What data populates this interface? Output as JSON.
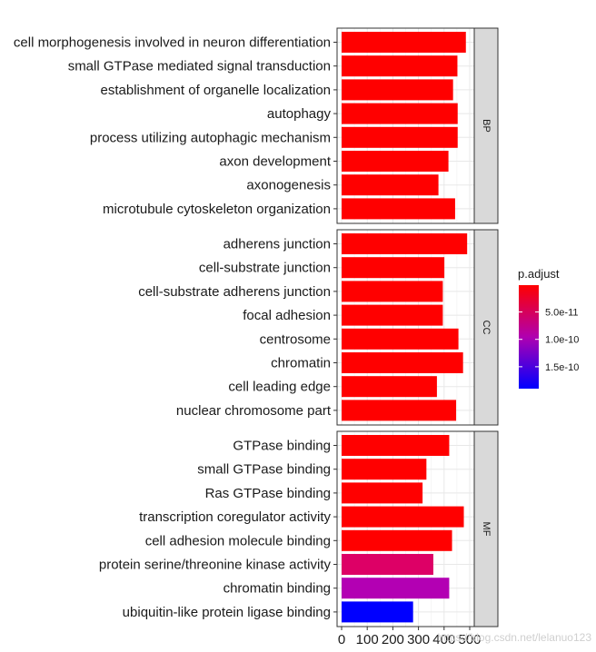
{
  "chart_data": {
    "type": "bar",
    "orientation": "horizontal",
    "title": "",
    "xlabel": "",
    "ylabel": "",
    "xlim": [
      0,
      520
    ],
    "x_ticks": [
      0,
      100,
      200,
      300,
      400,
      500
    ],
    "x_tick_labels": [
      "0",
      "100",
      "200",
      "300",
      "400",
      "500"
    ],
    "grid": true,
    "panels": [
      {
        "name": "BP",
        "bars": [
          {
            "term": "cell morphogenesis involved in neuron differentiation",
            "value": 485,
            "color": "#ff0000"
          },
          {
            "term": "small GTPase mediated signal transduction",
            "value": 452,
            "color": "#ff0000"
          },
          {
            "term": "establishment of organelle localization",
            "value": 435,
            "color": "#ff0000"
          },
          {
            "term": "autophagy",
            "value": 453,
            "color": "#ff0000"
          },
          {
            "term": "process utilizing autophagic mechanism",
            "value": 453,
            "color": "#ff0000"
          },
          {
            "term": "axon development",
            "value": 417,
            "color": "#ff0000"
          },
          {
            "term": "axonogenesis",
            "value": 378,
            "color": "#ff0000"
          },
          {
            "term": "microtubule cytoskeleton organization",
            "value": 443,
            "color": "#ff0000"
          }
        ]
      },
      {
        "name": "CC",
        "bars": [
          {
            "term": "adherens junction",
            "value": 490,
            "color": "#ff0000"
          },
          {
            "term": "cell-substrate junction",
            "value": 401,
            "color": "#ff0000"
          },
          {
            "term": "cell-substrate adherens junction",
            "value": 395,
            "color": "#ff0000"
          },
          {
            "term": "focal adhesion",
            "value": 395,
            "color": "#ff0000"
          },
          {
            "term": "centrosome",
            "value": 456,
            "color": "#ff0000"
          },
          {
            "term": "chromatin",
            "value": 474,
            "color": "#ff0000"
          },
          {
            "term": "cell leading edge",
            "value": 372,
            "color": "#ff0000"
          },
          {
            "term": "nuclear chromosome part",
            "value": 447,
            "color": "#ff0000"
          }
        ]
      },
      {
        "name": "MF",
        "bars": [
          {
            "term": "GTPase binding",
            "value": 420,
            "color": "#ff0000"
          },
          {
            "term": "small GTPase binding",
            "value": 331,
            "color": "#ff0000"
          },
          {
            "term": "Ras GTPase binding",
            "value": 316,
            "color": "#ff0000"
          },
          {
            "term": "transcription coregulator activity",
            "value": 477,
            "color": "#ff0000"
          },
          {
            "term": "cell adhesion molecule binding",
            "value": 431,
            "color": "#ff0000"
          },
          {
            "term": "protein serine/threonine kinase activity",
            "value": 358,
            "color": "#dd0066"
          },
          {
            "term": "chromatin binding",
            "value": 420,
            "color": "#b300b3"
          },
          {
            "term": "ubiquitin-like protein ligase binding",
            "value": 279,
            "color": "#0000ff"
          }
        ]
      }
    ],
    "legend": {
      "title": "p.adjust",
      "placement": "right",
      "color_low": "#ff0000",
      "color_high": "#0000ff",
      "range": [
        1e-12,
        1.9e-10
      ],
      "ticks": [
        {
          "label": "5.0e-11",
          "value": 5e-11
        },
        {
          "label": "1.0e-10",
          "value": 1e-10
        },
        {
          "label": "1.5e-10",
          "value": 1.5e-10
        }
      ]
    }
  },
  "watermark": "https://blog.csdn.net/lelanuo123"
}
